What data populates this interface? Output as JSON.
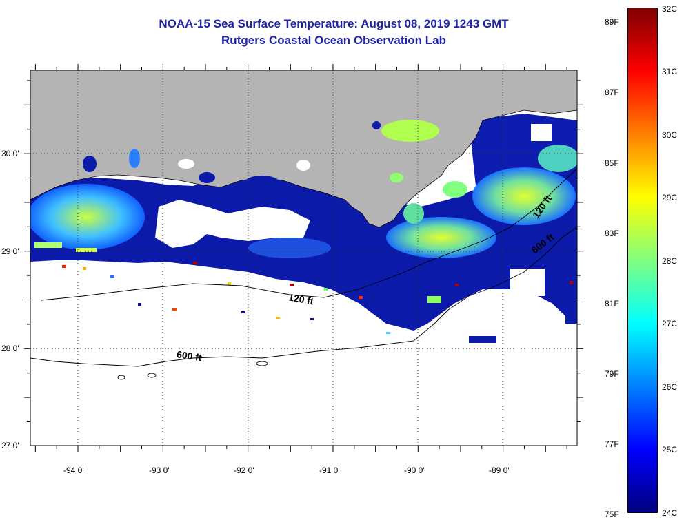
{
  "title": {
    "line1": "NOAA-15 Sea Surface Temperature:  August 08, 2019 1243 GMT",
    "line2": "Rutgers Coastal Ocean Observation Lab"
  },
  "map": {
    "lon_labels": [
      "-94 0'",
      "-93 0'",
      "-92 0'",
      "-91 0'",
      "-90 0'",
      "-89 0'"
    ],
    "lat_labels": [
      "30 0'",
      "29 0'",
      "28 0'",
      "27 0'"
    ],
    "contour_labels": [
      "120 ft",
      "600 ft",
      "120 ft",
      "600 ft"
    ],
    "land_color": "#b4b4b4",
    "no_data_color": "#ffffff",
    "graticule": "dotted"
  },
  "colorbar": {
    "fahrenheit_labels": [
      "89F",
      "87F",
      "85F",
      "83F",
      "81F",
      "79F",
      "77F",
      "75F"
    ],
    "celsius_labels": [
      "32C",
      "31C",
      "30C",
      "29C",
      "28C",
      "27C",
      "26C",
      "25C",
      "24C"
    ],
    "colors": [
      "#7f0000",
      "#ff0000",
      "#ff8000",
      "#ffff00",
      "#80ff80",
      "#00ffff",
      "#0080ff",
      "#0000ff",
      "#00007f"
    ]
  }
}
